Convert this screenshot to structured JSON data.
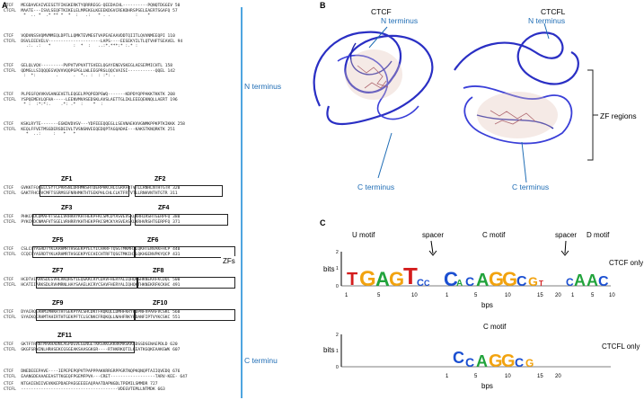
{
  "panels": {
    "a": "A",
    "b": "B",
    "c": "C"
  },
  "alignment": [
    [
      "CTCF   MEGDAVEAIVEESETFIKGKERKTYQRRREGG-QEEDACHL----------PQNQTDGGEV 50",
      "CTCFL  MAATE---ISVLSEQFTKIKELELMPEKGLKEEEKDGVCREKDHRSPSELEAERTSGAFQ 57",
      "        *  .. *  .* ** *  *  :   .:   * . .          :    *"
    ],
    [
      "CTCF   VQDVNSSVQMVMMEQLDPTLLQMKTEVMEGTVAPEAEAAVDDTQIITLQVVNMEEQPI 110",
      "CTCFL  DSVLEEEVELV---------------------LAPS----EESEKYILTLQTVHFTSEAVEL 94",
      "         .:. .:   *         :  *  :   ..:*.***:* :.* :"
    ],
    [
      "CTCF   GELQLVQV---------PVPVTVPVATTSVEELQGAYENEVSKEGLAESEPMICHTL 158",
      "CTCFL  QDMSLLSIQQQEGVQVVVQQPGPGLLWLEEGPRSLQQCVAISI-----------QQEL 142",
      "        :  *:        .      .  *.. :  : :*: ."
    ],
    [
      "CTCF   PLPEGFQVVKVGANGEVETLEQGELPPQPEDPSWQ-------KDPDYQPPAKKTKKTK 208",
      "CTCFL  YSPQEMEVLQFHA-----LEENVMVASEDSKLAVSLAETTGLIKLEEEQEKNQLLAERT 196",
      "        * :  :*:*:.    .*: .*  :    *  :"
    ],
    [
      "CTCF   KSKLRYTE-------EGKDVDVSV---YDFEEEQQEGLLSEVNAEKVVGNMKPPKPTKIKKK 258",
      "CTCFL  KEQLFFVETMSGDERSDEIVLTVSNSNVEEQEDQPTAGQADAE---KAKSTKNQRKTK 251",
      "         *  ..:     :   *   *"
    ]
  ],
  "zf_alignment": [
    [
      "CTCF   GVKKTFQCELCSYTCPRRSNLDRHMKSHTDERPHKCHLCGRAFRTVTLLRNHLNTHTGTR 320",
      "CTCFL  GAKTFHCDVCMFTSSRMSSFNRHMKTHTSEKPHLCHLCLKTFRTVTLLRNHVNTHTGTR 311"
    ],
    [
      "CTCF   PHKCPDCDMAFVTSGELVRHRRYKHTHEKPFKCSMCDYASVEVSKLKRHIRSHTGERPFQ 380",
      "CTCFL  PYKCNDCNMAFVTSGELVRHRRYKHTHEKPFKCSMCKYASVEASKLKRHVRSHTGERPFQ 371"
    ],
    [
      "CTCF   CSLCSYASRDTYKLKRHMRTHSGEKPYECYICHARFTQSGTMKMHILQKHTENVAKFHCP 440",
      "CTCFL  CCQCSYASRDTYKLKRHMRTHSGEKPYECHICHTRFTQSGTMKIHILQKHGENVPKYQCP 431"
    ],
    [
      "CTCF   HCDTVIARKSDLGVHLRKQHSYIEQGKKCRYCDAVFHERYALIQHQKSHKNEKRFKCDQC 500",
      "CTCFL  HCATIIARKSDLRVHMRNLHAYSAAELKCRYCSAVFHERYALIQHQKTHKNEKRFKCKHC 491"
    ],
    [
      "CTCF   DYACRQERHMIMHKRTHTGEKPYACSHCDKTFRQKQLLDMHFKRYHDPNFVPAAFVCSKC 560",
      "CTCFL  SYACKQERHMTAHIRTHTGEKPFTCLSCNKCFRQKQLLNAHFRKYHDANFIPTVYKCSKC 551"
    ],
    [
      "CTCF   GKTFTRRNTMARHADNCAGPDGVEGENGETKKSRKGRKRKMRSKKEDSSDSENAEPDLD 620",
      "CTCFL  GKGFSRWINLHRHSEKCGSGEAKSAASGKGR----RTHKRKQTILKEATKGQKEAAKGWK 607"
    ],
    [
      "CTCF   DNEDEEEPAVE----IEPEPEPQPVTPAPPPAKKRRGRPPGRTNQPKQNQPTAIIQVEDQ 676",
      "CTCFL  EAANGDEAAAEEASTTKGEQFPGEMFPVA---CRET------------------TARV-KEE- 647"
    ],
    [
      "CTCF   NTGAIENIIVEVKKEPDAEPAEGEEEEAQPAATDAPNGDLTPEMILSMMDR 727",
      "CTCFL  ---------------------------------------VDEGVTEMLLNTMDK 663"
    ]
  ],
  "zf_labels": [
    "ZF1",
    "ZF2",
    "ZF3",
    "ZF4",
    "ZF5",
    "ZF6",
    "ZF7",
    "ZF8",
    "ZF9",
    "ZF10",
    "ZF11"
  ],
  "regions": {
    "n_terminus": "N terminus",
    "zfs": "ZFs",
    "c_terminus": "C terminu"
  },
  "structure": {
    "ctcf_title": "CTCF",
    "ctcfl_title": "CTCFL",
    "n_terminus": "N terminus",
    "c_terminus": "C terminus",
    "zf_regions": "ZF regions"
  },
  "logo": {
    "motif_u": "U motif",
    "spacer1": "spacer",
    "motif_c": "C motif",
    "spacer2": "spacer",
    "motif_d": "D motif",
    "ctcf_only": "CTCF only",
    "ctcfl_only": "CTCFL only",
    "motif_c2": "C motif",
    "bits": "bits",
    "bps": "bps",
    "ticks_u": [
      "1",
      "5",
      "10"
    ],
    "ticks_c": [
      "1",
      "5",
      "10",
      "15",
      "20"
    ],
    "ticks_d": [
      "1",
      "5",
      "10"
    ],
    "ticks_2": [
      "1",
      "5",
      "10",
      "15",
      "20"
    ],
    "y0": "0",
    "y1": "1",
    "y2": "2"
  },
  "colors": {
    "line": "#4ea5e0",
    "region": "#1f6db5",
    "A": "#21a33b",
    "C": "#1b4fd1",
    "G": "#f2a30f",
    "T": "#d41d1d"
  }
}
